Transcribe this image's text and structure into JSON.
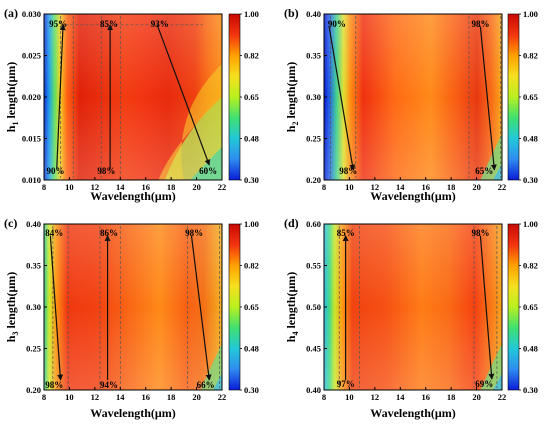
{
  "colors": {
    "colormap": [
      "#0a1cd6",
      "#2f8cf0",
      "#22c8d8",
      "#40e070",
      "#b8f020",
      "#f6e020",
      "#ffa000",
      "#f23410",
      "#c80a05"
    ],
    "annotation_line": "#111111",
    "dashed_line": "#555555"
  },
  "chart_data": [
    {
      "type": "heatmap",
      "panel": "(a)",
      "xlabel": "Wavelength(μm)",
      "ylabel_main": "h",
      "ylabel_sub": "1",
      "ylabel_rest": " length(μm)",
      "xlim": [
        8,
        22
      ],
      "ylim": [
        0.01,
        0.03
      ],
      "xticks": [
        "8",
        "10",
        "12",
        "14",
        "16",
        "18",
        "20",
        "22"
      ],
      "yticks": [
        "0.010",
        "0.015",
        "0.020",
        "0.025",
        "0.030"
      ],
      "colorbar": {
        "range": [
          0.3,
          1.0
        ],
        "ticks": [
          "0.30",
          "0.48",
          "0.65",
          "0.82",
          "1.00"
        ]
      },
      "annotations": [
        {
          "text": "95%",
          "x": 8.4,
          "y": 0.0288
        },
        {
          "text": "90%",
          "x": 8.2,
          "y": 0.0111
        },
        {
          "text": "85%",
          "x": 12.4,
          "y": 0.0288
        },
        {
          "text": "98%",
          "x": 12.2,
          "y": 0.0111
        },
        {
          "text": "93%",
          "x": 16.4,
          "y": 0.0288
        },
        {
          "text": "60%",
          "x": 20.2,
          "y": 0.0111
        }
      ],
      "arrows": [
        {
          "from": [
            9.0,
            0.0113
          ],
          "to": [
            9.5,
            0.0287
          ]
        },
        {
          "from": [
            13.2,
            0.0113
          ],
          "to": [
            13.2,
            0.0287
          ]
        },
        {
          "from": [
            16.9,
            0.0287
          ],
          "to": [
            21.0,
            0.0118
          ]
        }
      ],
      "dashed_x": [
        9.3,
        10.3,
        12.5,
        14.0
      ],
      "dashed_y": [
        0.0287
      ]
    },
    {
      "type": "heatmap",
      "panel": "(b)",
      "xlabel": "Wavelength(μm)",
      "ylabel_main": "h",
      "ylabel_sub": "2",
      "ylabel_rest": " length(μm)",
      "xlim": [
        8,
        22
      ],
      "ylim": [
        0.2,
        0.4
      ],
      "xticks": [
        "8",
        "10",
        "12",
        "14",
        "16",
        "18",
        "20",
        "22"
      ],
      "yticks": [
        "0.20",
        "0.25",
        "0.30",
        "0.35",
        "0.40"
      ],
      "colorbar": {
        "range": [
          0.3,
          1.0
        ],
        "ticks": [
          "0.30",
          "0.48",
          "0.65",
          "0.82",
          "1.00"
        ]
      },
      "annotations": [
        {
          "text": "90%",
          "x": 8.3,
          "y": 0.388
        },
        {
          "text": "98%",
          "x": 9.2,
          "y": 0.211
        },
        {
          "text": "98%",
          "x": 19.6,
          "y": 0.388
        },
        {
          "text": "65%",
          "x": 19.9,
          "y": 0.211
        }
      ],
      "arrows": [
        {
          "from": [
            8.4,
            0.385
          ],
          "to": [
            10.3,
            0.212
          ]
        },
        {
          "from": [
            20.3,
            0.385
          ],
          "to": [
            21.4,
            0.212
          ]
        }
      ],
      "dashed_x": [
        8.5,
        10.5,
        19.4,
        21.9
      ]
    },
    {
      "type": "heatmap",
      "panel": "(c)",
      "xlabel": "Wavelength(μm)",
      "ylabel_main": "h",
      "ylabel_sub": "3",
      "ylabel_rest": " length(μm)",
      "xlim": [
        8,
        22
      ],
      "ylim": [
        0.2,
        0.4
      ],
      "xticks": [
        "8",
        "10",
        "12",
        "14",
        "16",
        "18",
        "20",
        "22"
      ],
      "yticks": [
        "0.20",
        "0.25",
        "0.30",
        "0.35",
        "0.40"
      ],
      "colorbar": {
        "range": [
          0.3,
          1.0
        ],
        "ticks": [
          "0.30",
          "0.48",
          "0.65",
          "0.82",
          "1.00"
        ]
      },
      "annotations": [
        {
          "text": "84%",
          "x": 8.1,
          "y": 0.389
        },
        {
          "text": "98%",
          "x": 8.1,
          "y": 0.206
        },
        {
          "text": "86%",
          "x": 12.4,
          "y": 0.389
        },
        {
          "text": "94%",
          "x": 12.4,
          "y": 0.206
        },
        {
          "text": "98%",
          "x": 19.1,
          "y": 0.389
        },
        {
          "text": "66%",
          "x": 20.0,
          "y": 0.206
        }
      ],
      "arrows": [
        {
          "from": [
            8.5,
            0.386
          ],
          "to": [
            9.3,
            0.212
          ]
        },
        {
          "from": [
            13.0,
            0.212
          ],
          "to": [
            13.0,
            0.386
          ]
        },
        {
          "from": [
            19.6,
            0.386
          ],
          "to": [
            21.0,
            0.212
          ]
        }
      ],
      "dashed_x": [
        8.7,
        9.9,
        12.4,
        14.0,
        19.3,
        21.8
      ]
    },
    {
      "type": "heatmap",
      "panel": "(d)",
      "xlabel": "Wavelength(μm)",
      "ylabel_main": "h",
      "ylabel_sub": "4",
      "ylabel_rest": " length(μm)",
      "xlim": [
        8,
        22
      ],
      "ylim": [
        0.4,
        0.6
      ],
      "xticks": [
        "8",
        "10",
        "12",
        "14",
        "16",
        "18",
        "20",
        "22"
      ],
      "yticks": [
        "0.40",
        "0.45",
        "0.50",
        "0.55",
        "0.60"
      ],
      "colorbar": {
        "range": [
          0.3,
          1.0
        ],
        "ticks": [
          "0.30",
          "0.48",
          "0.65",
          "0.82",
          "1.00"
        ]
      },
      "annotations": [
        {
          "text": "85%",
          "x": 9.0,
          "y": 0.589
        },
        {
          "text": "97%",
          "x": 9.0,
          "y": 0.407
        },
        {
          "text": "98%",
          "x": 19.6,
          "y": 0.589
        },
        {
          "text": "69%",
          "x": 19.9,
          "y": 0.407
        }
      ],
      "arrows": [
        {
          "from": [
            9.7,
            0.412
          ],
          "to": [
            9.7,
            0.586
          ]
        },
        {
          "from": [
            20.3,
            0.586
          ],
          "to": [
            21.2,
            0.413
          ]
        }
      ],
      "dashed_x": [
        9.2,
        10.8,
        19.8,
        21.6
      ]
    }
  ]
}
